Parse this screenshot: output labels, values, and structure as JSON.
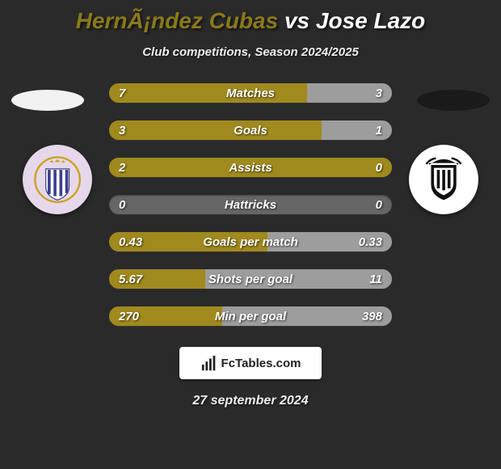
{
  "title": {
    "player1": "HernÃ¡ndez Cubas",
    "vs": "vs",
    "player2": "Jose Lazo",
    "color1": "#8a7a1a",
    "color_vs": "#ffffff",
    "color2": "#ffffff"
  },
  "subtitle": "Club competitions, Season 2024/2025",
  "side_shapes": {
    "left_color": "#f2f2f2",
    "right_color": "#1a1a1a"
  },
  "badges": {
    "left": {
      "bg": "#e6d8ea",
      "svg_type": "shield_stripes",
      "stripe_colors": [
        "#3a3f8f",
        "#ffffff"
      ],
      "ring_color": "#c9a227",
      "crown_color": "#c9a227"
    },
    "right": {
      "bg": "#ffffff",
      "svg_type": "shield_bw",
      "main_color": "#111111",
      "accent_color": "#ffffff",
      "wing_color": "#111111"
    }
  },
  "bar_colors": {
    "left_fill": "#a08a1e",
    "right_fill": "#9d9d9d",
    "track": "#666666"
  },
  "stats": [
    {
      "label": "Matches",
      "left_val": "7",
      "right_val": "3",
      "left_pct": 70,
      "right_pct": 30
    },
    {
      "label": "Goals",
      "left_val": "3",
      "right_val": "1",
      "left_pct": 75,
      "right_pct": 25
    },
    {
      "label": "Assists",
      "left_val": "2",
      "right_val": "0",
      "left_pct": 100,
      "right_pct": 0
    },
    {
      "label": "Hattricks",
      "left_val": "0",
      "right_val": "0",
      "left_pct": 0,
      "right_pct": 0
    },
    {
      "label": "Goals per match",
      "left_val": "0.43",
      "right_val": "0.33",
      "left_pct": 56,
      "right_pct": 44
    },
    {
      "label": "Shots per goal",
      "left_val": "5.67",
      "right_val": "11",
      "left_pct": 34,
      "right_pct": 66
    },
    {
      "label": "Min per goal",
      "left_val": "270",
      "right_val": "398",
      "left_pct": 40,
      "right_pct": 60
    }
  ],
  "footer": {
    "brand": "FcTables.com"
  },
  "date": "27 september 2024"
}
